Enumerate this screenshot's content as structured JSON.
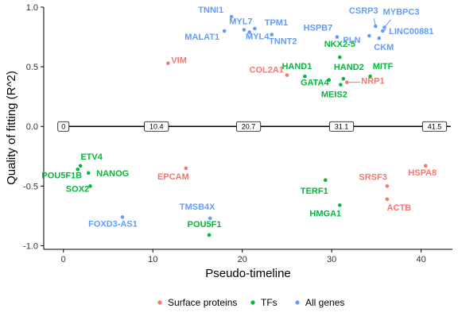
{
  "chart_data": {
    "type": "scatter",
    "xlabel": "Pseudo-timeline",
    "ylabel": "Quality of fitting (R^2)",
    "xlim": [
      -2.2,
      43.5
    ],
    "ylim": [
      -1.03,
      1.0
    ],
    "x_ticks": [
      0,
      10,
      20,
      30,
      40
    ],
    "y_ticks": [
      1.0,
      0.5,
      0.0,
      -0.5,
      -1.0
    ],
    "y_tick_labels": [
      "1.0",
      "0.5",
      "0.0",
      "-0.5",
      "-1.0"
    ],
    "grid": false,
    "legend_position": "bottom",
    "colors": {
      "surface": "#F8766D",
      "tfs": "#00BA38",
      "allgenes": "#619CFF"
    },
    "series": [
      {
        "name": "Surface proteins",
        "key": "surface"
      },
      {
        "name": "TFs",
        "key": "tfs"
      },
      {
        "name": "All genes",
        "key": "allgenes"
      }
    ],
    "zero_line_markers": [
      "0",
      "10.4",
      "20.7",
      "31.1",
      "41.5"
    ],
    "points": [
      {
        "label": "VIM",
        "x": 11.7,
        "y": 0.53,
        "group": "surface"
      },
      {
        "label": "COL2A1",
        "x": 25.0,
        "y": 0.43,
        "group": "surface"
      },
      {
        "label": "NRP1",
        "x": 31.7,
        "y": 0.37,
        "group": "surface"
      },
      {
        "label": "EPCAM",
        "x": 13.7,
        "y": -0.35,
        "group": "surface"
      },
      {
        "label": "SRSF3",
        "x": 36.2,
        "y": -0.5,
        "group": "surface"
      },
      {
        "label": "HSPA8",
        "x": 40.5,
        "y": -0.33,
        "group": "surface"
      },
      {
        "label": "ACTB",
        "x": 36.2,
        "y": -0.61,
        "group": "surface"
      },
      {
        "label": "NKX2-5",
        "x": 30.9,
        "y": 0.58,
        "group": "tfs"
      },
      {
        "label": "HAND1",
        "x": 27.0,
        "y": 0.42,
        "group": "tfs"
      },
      {
        "label": "HAND2",
        "x": 31.3,
        "y": 0.4,
        "group": "tfs"
      },
      {
        "label": "MITF",
        "x": 34.3,
        "y": 0.42,
        "group": "tfs"
      },
      {
        "label": "GATA4",
        "x": 29.7,
        "y": 0.39,
        "group": "tfs"
      },
      {
        "label": "MEIS2",
        "x": 31.0,
        "y": 0.35,
        "group": "tfs"
      },
      {
        "label": "ETV4",
        "x": 1.9,
        "y": -0.33,
        "group": "tfs"
      },
      {
        "label": "POU5F1B",
        "x": 1.6,
        "y": -0.36,
        "group": "tfs"
      },
      {
        "label": "NANOG",
        "x": 2.8,
        "y": -0.39,
        "group": "tfs"
      },
      {
        "label": "SOX2",
        "x": 3.0,
        "y": -0.5,
        "group": "tfs"
      },
      {
        "label": "TERF1",
        "x": 29.3,
        "y": -0.45,
        "group": "tfs"
      },
      {
        "label": "HMGA1",
        "x": 30.9,
        "y": -0.66,
        "group": "tfs"
      },
      {
        "label": "POU5F1",
        "x": 16.3,
        "y": -0.91,
        "group": "tfs"
      },
      {
        "label": "TNNI1",
        "x": 18.8,
        "y": 0.92,
        "group": "allgenes"
      },
      {
        "label": "MYL7",
        "x": 20.2,
        "y": 0.81,
        "group": "allgenes"
      },
      {
        "label": "MALAT1",
        "x": 18.0,
        "y": 0.8,
        "group": "allgenes"
      },
      {
        "label": "MYL4",
        "x": 20.8,
        "y": 0.79,
        "group": "allgenes"
      },
      {
        "label": "TPM1",
        "x": 21.4,
        "y": 0.82,
        "group": "allgenes"
      },
      {
        "label": "TNNT2",
        "x": 23.3,
        "y": 0.77,
        "group": "allgenes"
      },
      {
        "label": "HSPB7",
        "x": 30.6,
        "y": 0.75,
        "group": "allgenes"
      },
      {
        "label": "CSRP3",
        "x": 34.9,
        "y": 0.84,
        "group": "allgenes"
      },
      {
        "label": "MYBPC3",
        "x": 35.9,
        "y": 0.83,
        "group": "allgenes"
      },
      {
        "label": "PLN",
        "x": 34.2,
        "y": 0.76,
        "group": "allgenes"
      },
      {
        "label": "LINC00881",
        "x": 35.7,
        "y": 0.8,
        "group": "allgenes"
      },
      {
        "label": "CKM",
        "x": 35.3,
        "y": 0.74,
        "group": "allgenes"
      },
      {
        "label": "TMSB4X",
        "x": 16.4,
        "y": -0.77,
        "group": "allgenes"
      },
      {
        "label": "FOXD3-AS1",
        "x": 6.6,
        "y": -0.76,
        "group": "allgenes"
      }
    ]
  }
}
